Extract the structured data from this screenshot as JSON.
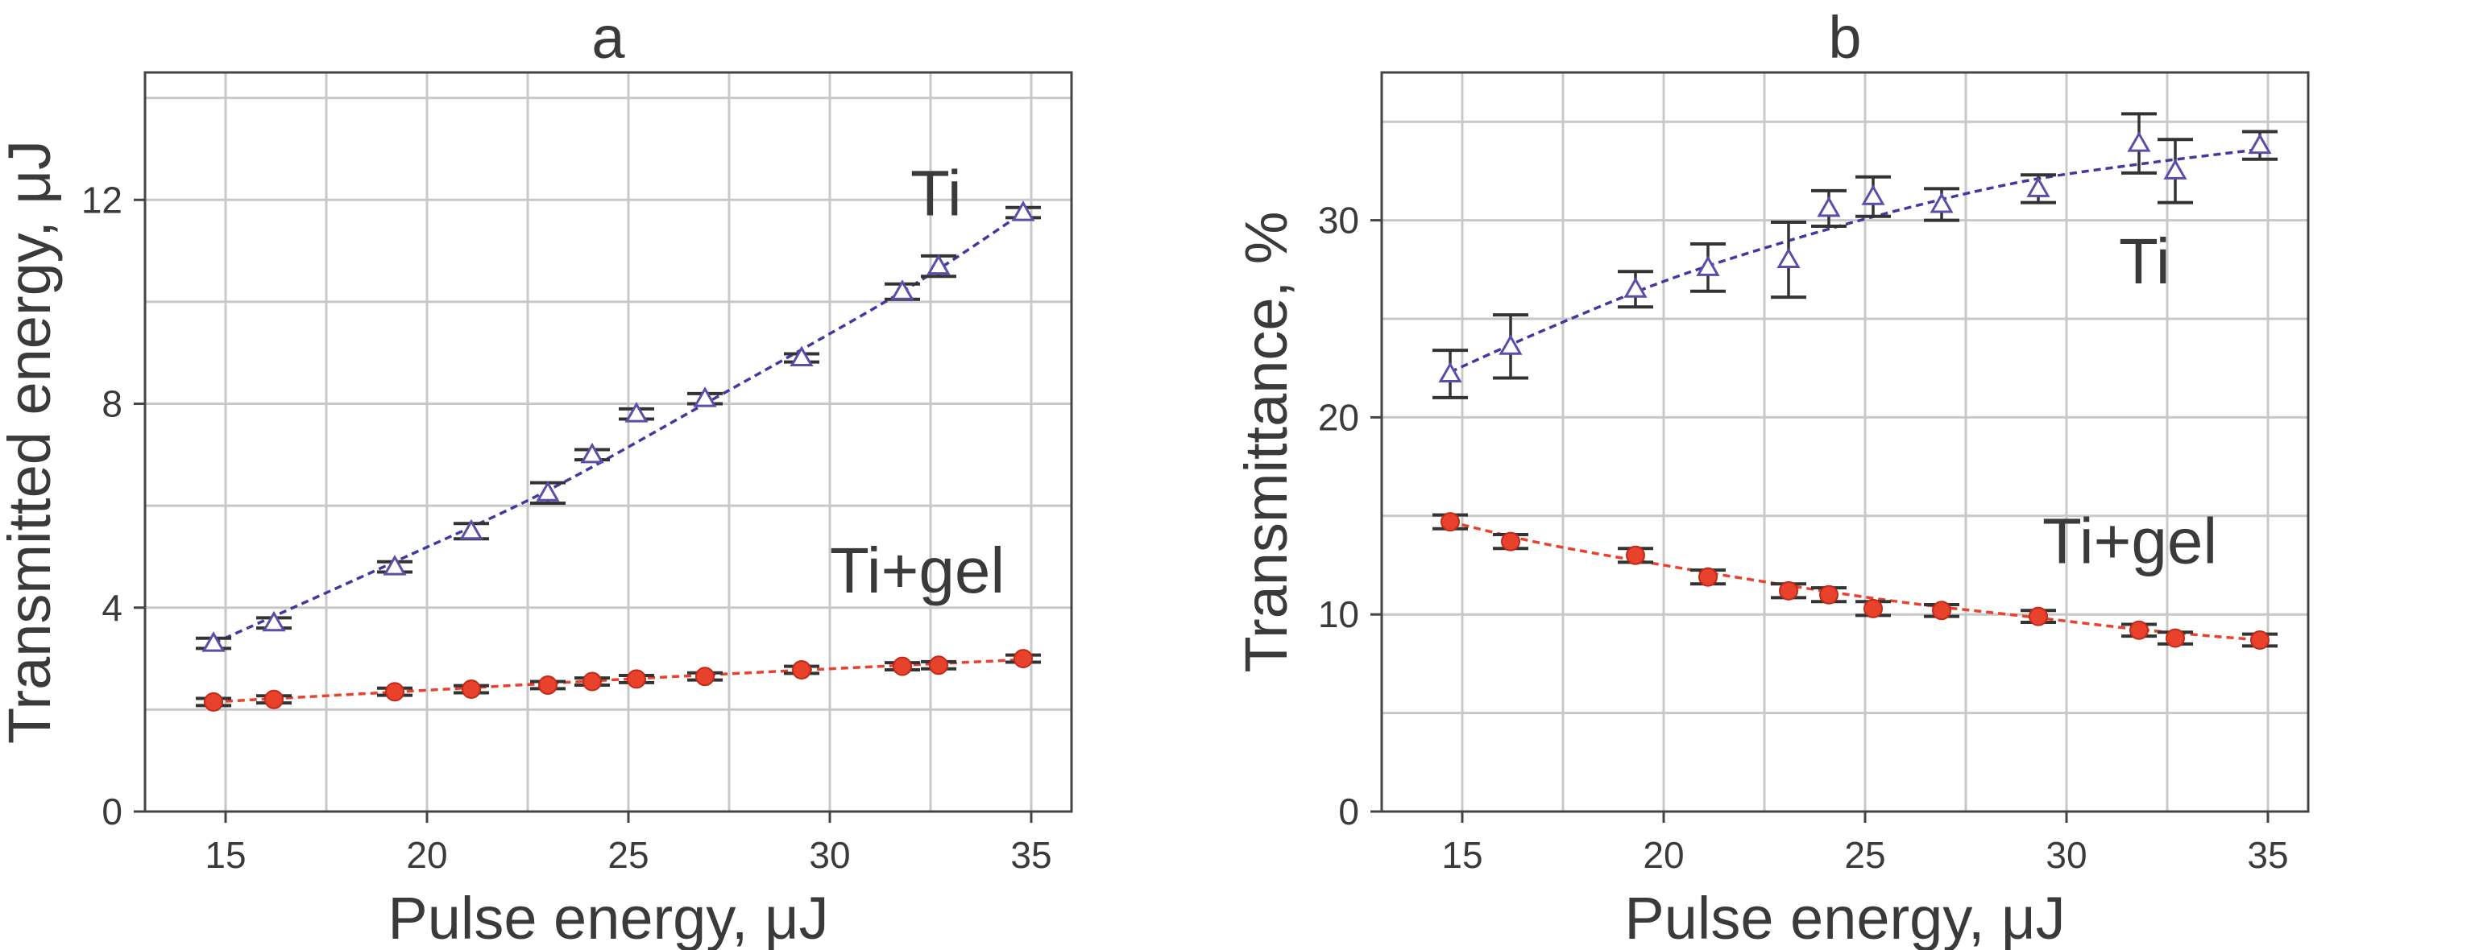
{
  "chart_data": [
    {
      "type": "scatter",
      "title": "a",
      "xlabel": "Pulse energy, μJ",
      "ylabel": "Transmitted  energy, μJ",
      "xlim": [
        13,
        36
      ],
      "ylim": [
        0,
        14.5
      ],
      "xticks": [
        15,
        20,
        25,
        30,
        35
      ],
      "yticks": [
        0,
        4,
        8,
        12
      ],
      "xtick_labels": [
        "15",
        "20",
        "25",
        "30",
        "35"
      ],
      "ytick_labels": [
        "0",
        "4",
        "8",
        "12"
      ],
      "grid": true,
      "series": [
        {
          "name": "Ti",
          "label": "Ti",
          "marker": "triangle-open",
          "color": "#5a4fa8",
          "line_color": "#3f3aa0",
          "x": [
            14.7,
            16.2,
            19.2,
            21.1,
            23.0,
            24.1,
            25.2,
            26.9,
            29.3,
            31.8,
            32.7,
            34.8
          ],
          "y": [
            3.3,
            3.7,
            4.8,
            5.5,
            6.25,
            7.0,
            7.8,
            8.1,
            8.9,
            10.2,
            10.7,
            11.75
          ],
          "err": [
            0.1,
            0.1,
            0.1,
            0.15,
            0.2,
            0.1,
            0.1,
            0.1,
            0.08,
            0.15,
            0.2,
            0.1
          ],
          "fit_x": [
            14.7,
            19.2,
            23.0,
            26.9,
            31.8,
            34.8
          ],
          "fit_y": [
            3.3,
            4.9,
            6.3,
            8.0,
            10.2,
            11.75
          ],
          "label_pos": [
            32.0,
            11.7
          ]
        },
        {
          "name": "Ti+gel",
          "label": "Ti+gel",
          "marker": "circle-filled",
          "color": "#e8412c",
          "line_color": "#e8412c",
          "x": [
            14.7,
            16.2,
            19.2,
            21.1,
            23.0,
            24.1,
            25.2,
            26.9,
            29.3,
            31.8,
            32.7,
            34.8
          ],
          "y": [
            2.15,
            2.2,
            2.35,
            2.4,
            2.48,
            2.55,
            2.6,
            2.65,
            2.78,
            2.85,
            2.87,
            3.0
          ],
          "err": [
            0.07,
            0.07,
            0.07,
            0.07,
            0.07,
            0.07,
            0.07,
            0.07,
            0.07,
            0.07,
            0.07,
            0.07
          ],
          "fit_x": [
            14.7,
            20.0,
            25.0,
            30.0,
            34.8
          ],
          "fit_y": [
            2.15,
            2.38,
            2.6,
            2.8,
            2.98
          ],
          "label_pos": [
            30.0,
            4.3
          ]
        }
      ]
    },
    {
      "type": "scatter",
      "title": "b",
      "xlabel": "Pulse energy, μJ",
      "ylabel": "Transmittance, %",
      "xlim": [
        13,
        36
      ],
      "ylim": [
        0,
        37.5
      ],
      "xticks": [
        15,
        20,
        25,
        30,
        35
      ],
      "yticks": [
        0,
        10,
        20,
        30
      ],
      "xtick_labels": [
        "15",
        "20",
        "25",
        "30",
        "35"
      ],
      "ytick_labels": [
        "0",
        "10",
        "20",
        "30"
      ],
      "grid": true,
      "series": [
        {
          "name": "Ti",
          "label": "Ti",
          "marker": "triangle-open",
          "color": "#5a4fa8",
          "line_color": "#3f3aa0",
          "x": [
            14.7,
            16.2,
            19.3,
            21.1,
            23.1,
            24.1,
            25.2,
            26.9,
            29.3,
            31.8,
            32.7,
            34.8
          ],
          "y": [
            22.2,
            23.6,
            26.5,
            27.6,
            28.0,
            30.6,
            31.2,
            30.8,
            31.6,
            33.9,
            32.5,
            33.8
          ],
          "err": [
            1.2,
            1.6,
            0.9,
            1.2,
            1.9,
            0.9,
            1.0,
            0.8,
            0.7,
            1.5,
            1.6,
            0.7
          ],
          "fit_x": [
            14.7,
            17.0,
            20.0,
            23.0,
            26.0,
            29.0,
            32.0,
            34.8
          ],
          "fit_y": [
            22.3,
            24.4,
            26.9,
            28.9,
            30.6,
            32.0,
            32.9,
            33.6
          ],
          "label_pos": [
            31.3,
            26.8
          ]
        },
        {
          "name": "Ti+gel",
          "label": "Ti+gel",
          "marker": "circle-filled",
          "color": "#e8412c",
          "line_color": "#e8412c",
          "x": [
            14.7,
            16.2,
            19.3,
            21.1,
            23.1,
            24.1,
            25.2,
            26.9,
            29.3,
            31.8,
            32.7,
            34.8
          ],
          "y": [
            14.7,
            13.7,
            13.0,
            11.9,
            11.2,
            11.0,
            10.3,
            10.2,
            9.9,
            9.2,
            8.8,
            8.7
          ],
          "err": [
            0.35,
            0.35,
            0.35,
            0.35,
            0.35,
            0.35,
            0.35,
            0.3,
            0.3,
            0.3,
            0.3,
            0.3
          ],
          "fit_x": [
            14.7,
            17.0,
            20.0,
            23.0,
            26.0,
            29.0,
            32.0,
            34.8
          ],
          "fit_y": [
            14.7,
            13.6,
            12.5,
            11.5,
            10.6,
            9.9,
            9.2,
            8.7
          ],
          "label_pos": [
            29.4,
            12.6
          ]
        }
      ]
    }
  ]
}
